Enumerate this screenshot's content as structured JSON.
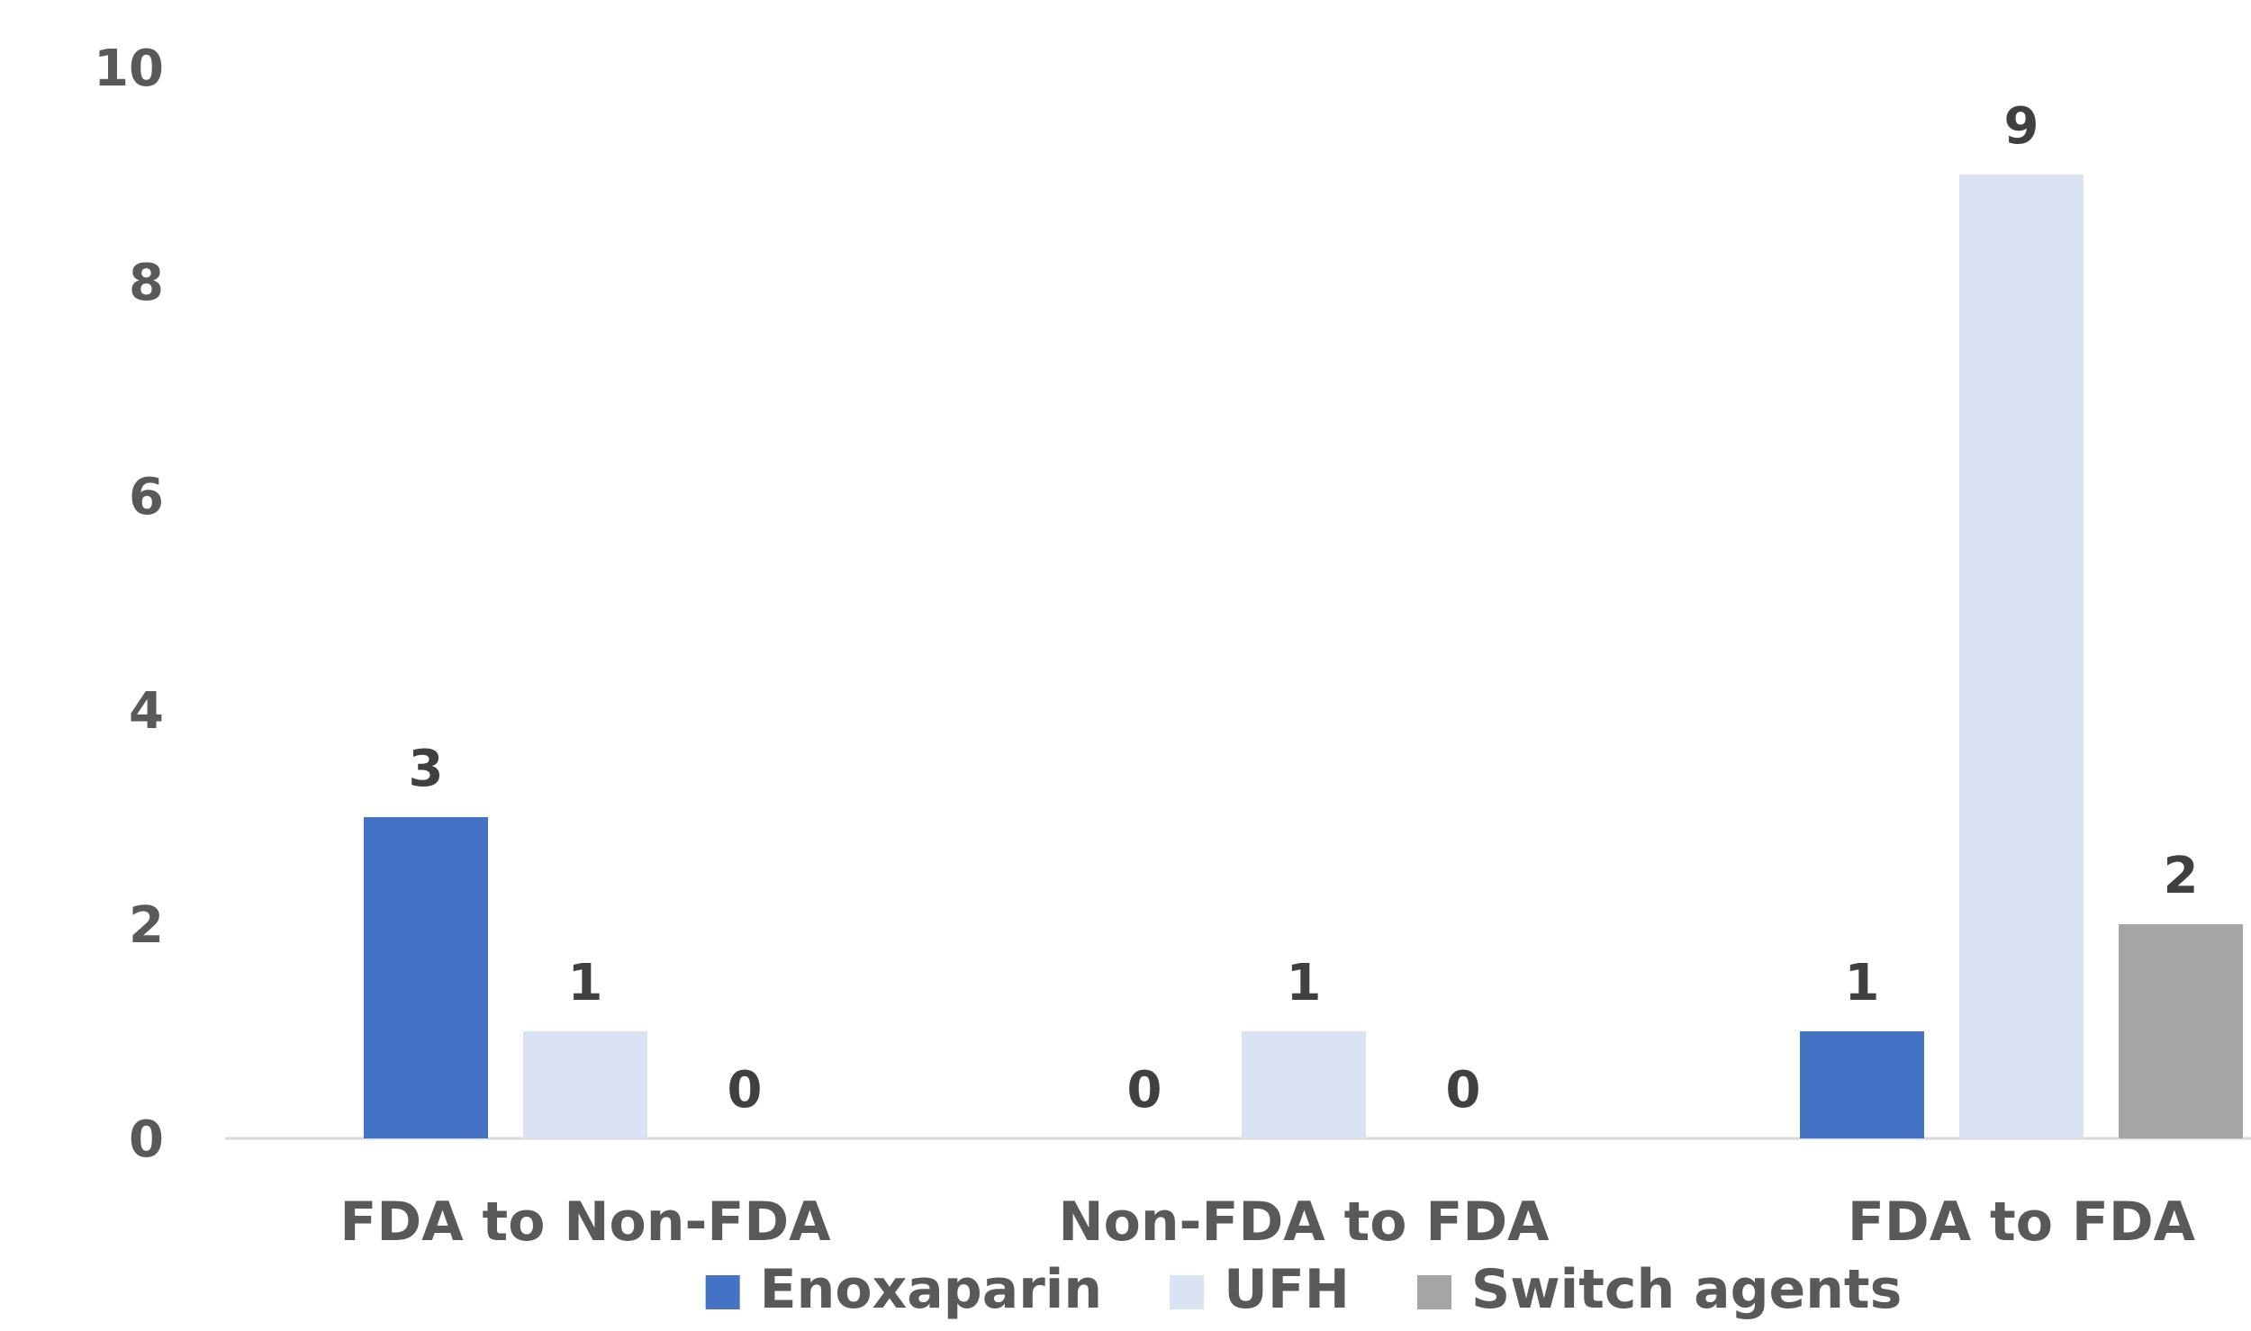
{
  "chart_data": {
    "type": "bar",
    "categories": [
      "FDA to Non-FDA",
      "Non-FDA to FDA",
      "FDA to FDA"
    ],
    "series": [
      {
        "name": "Enoxaparin",
        "values": [
          3,
          0,
          1
        ],
        "color": "#4472C4"
      },
      {
        "name": "UFH",
        "values": [
          1,
          1,
          9
        ],
        "color": "#DAE3F3"
      },
      {
        "name": "Switch agents",
        "values": [
          0,
          0,
          2
        ],
        "color": "#A5A5A5"
      }
    ],
    "ylim": [
      0,
      10
    ],
    "yticks": [
      "0",
      "2",
      "4",
      "6",
      "8",
      "10"
    ],
    "grid": false,
    "legend_position": "bottom"
  }
}
